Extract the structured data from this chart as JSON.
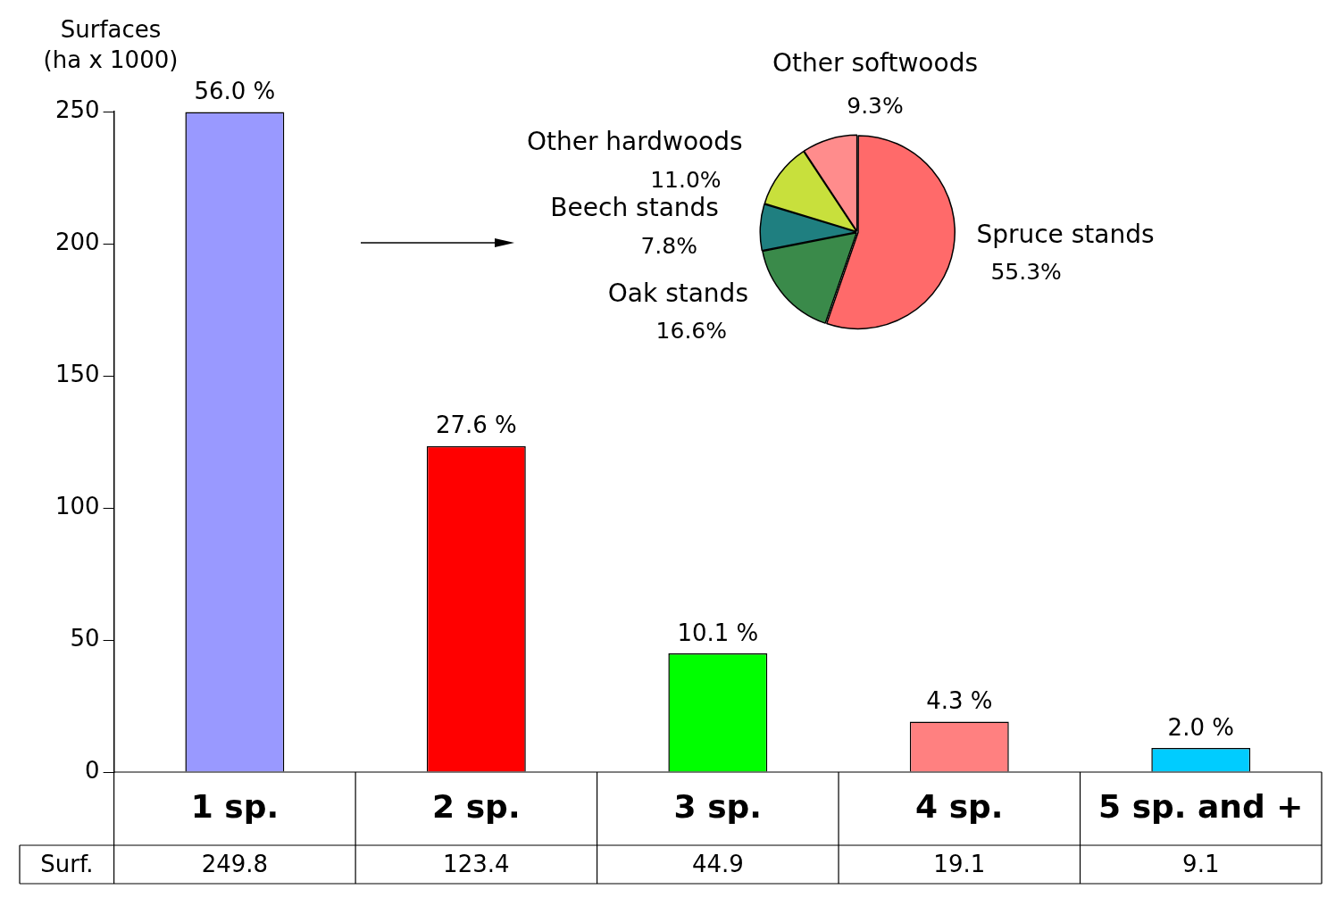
{
  "chart_data": [
    {
      "type": "bar",
      "ylabel": "Surfaces\n(ha x 1000)",
      "categories": [
        "1 sp.",
        "2 sp.",
        "3 sp.",
        "4 sp.",
        "5 sp. and +"
      ],
      "values": [
        249.8,
        123.4,
        44.9,
        19.1,
        9.1
      ],
      "colors": [
        "#9999ff",
        "#ff0000",
        "#00ff00",
        "#ff8080",
        "#00ccff"
      ],
      "value_labels": [
        "249.8",
        "123.4",
        "44.9",
        "19.1",
        "9.1"
      ],
      "annotations": [
        "Surf.",
        {
          "text": "56.0 %",
          "x": "1 sp.",
          "y": 249.8
        },
        {
          "text": "27.6 %",
          "x": "2 sp.",
          "y": 123.4
        },
        {
          "text": "10.1 %",
          "x": "3 sp.",
          "y": 44.9
        },
        {
          "text": "4.3 %",
          "x": "4 sp.",
          "y": 19.1
        },
        {
          "text": "2.0 %",
          "x": "5 sp. and +",
          "y": 9.1
        }
      ],
      "ylim": [
        0,
        250
      ],
      "yticks": [
        0,
        50,
        100,
        150,
        200,
        250
      ],
      "grid": false,
      "legend": false
    },
    {
      "type": "pie",
      "categories": [
        "Spruce stands",
        "Oak stands",
        "Beech stands",
        "Other hardwoods",
        "Other softwoods"
      ],
      "values": [
        55.3,
        16.6,
        7.8,
        11.0,
        9.3
      ],
      "colors": [
        "#ff6a6a",
        "#3a8a4a",
        "#1f7f80",
        "#c8e03c",
        "#ff8c8c"
      ],
      "value_labels": [
        "55.3%",
        "16.6%",
        "7.8%",
        "11.0%",
        "9.3%"
      ],
      "legend": false
    }
  ]
}
